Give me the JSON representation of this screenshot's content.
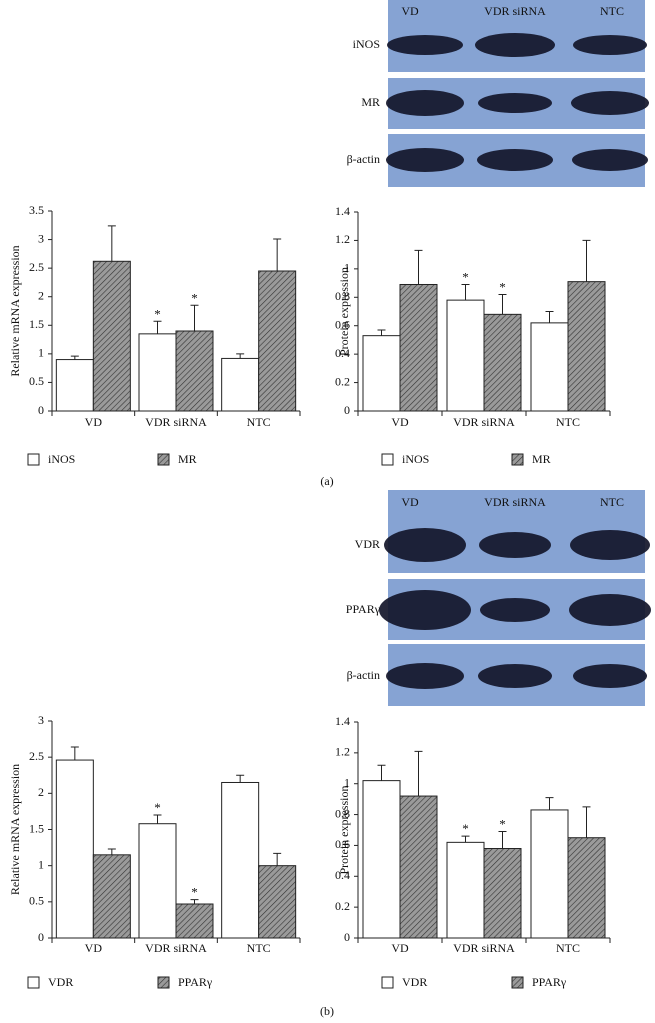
{
  "panels": [
    {
      "label": "(a)",
      "blot": {
        "columns": [
          "VD",
          "VDR siRNA",
          "NTC"
        ],
        "rows": [
          "iNOS",
          "MR",
          "β-actin"
        ]
      }
    },
    {
      "label": "(b)",
      "blot": {
        "columns": [
          "VD",
          "VDR siRNA",
          "NTC"
        ],
        "rows": [
          "VDR",
          "PPARγ",
          "β-actin"
        ]
      }
    }
  ],
  "chart_data": [
    {
      "type": "bar",
      "ylabel": "Relative mRNA expression",
      "categories": [
        "VD",
        "VDR siRNA",
        "NTC"
      ],
      "ylim": [
        0,
        3.5
      ],
      "yticks": [
        0,
        0.5,
        1,
        1.5,
        2,
        2.5,
        3,
        3.5
      ],
      "series": [
        {
          "name": "iNOS",
          "color": "#ffffff",
          "values": [
            0.9,
            1.35,
            0.92
          ],
          "errors": [
            0.06,
            0.22,
            0.08
          ],
          "marks": [
            null,
            "*",
            null
          ]
        },
        {
          "name": "MR",
          "color": "#9a9a9a",
          "fill": "hatched",
          "values": [
            2.62,
            1.4,
            2.45
          ],
          "errors": [
            0.62,
            0.45,
            0.56
          ],
          "marks": [
            null,
            "*",
            null
          ]
        }
      ]
    },
    {
      "type": "bar",
      "ylabel": "Protein expression",
      "categories": [
        "VD",
        "VDR siRNA",
        "NTC"
      ],
      "ylim": [
        0,
        1.4
      ],
      "yticks": [
        0,
        0.2,
        0.4,
        0.6,
        0.8,
        1,
        1.2,
        1.4
      ],
      "series": [
        {
          "name": "iNOS",
          "color": "#ffffff",
          "values": [
            0.53,
            0.78,
            0.62
          ],
          "errors": [
            0.04,
            0.11,
            0.08
          ],
          "marks": [
            null,
            "*",
            null
          ]
        },
        {
          "name": "MR",
          "color": "#9a9a9a",
          "fill": "hatched",
          "values": [
            0.89,
            0.68,
            0.91
          ],
          "errors": [
            0.24,
            0.14,
            0.29
          ],
          "marks": [
            null,
            "*",
            null
          ]
        }
      ]
    },
    {
      "type": "bar",
      "ylabel": "Relative mRNA expression",
      "categories": [
        "VD",
        "VDR siRNA",
        "NTC"
      ],
      "ylim": [
        0,
        3
      ],
      "yticks": [
        0,
        0.5,
        1,
        1.5,
        2,
        2.5,
        3
      ],
      "series": [
        {
          "name": "VDR",
          "color": "#ffffff",
          "values": [
            2.46,
            1.58,
            2.15
          ],
          "errors": [
            0.18,
            0.12,
            0.1
          ],
          "marks": [
            null,
            "*",
            null
          ]
        },
        {
          "name": "PPARγ",
          "color": "#9a9a9a",
          "fill": "hatched",
          "values": [
            1.15,
            0.47,
            1.0
          ],
          "errors": [
            0.08,
            0.06,
            0.17
          ],
          "marks": [
            null,
            "*",
            null
          ]
        }
      ]
    },
    {
      "type": "bar",
      "ylabel": "Protein expression",
      "categories": [
        "VD",
        "VDR siRNA",
        "NTC"
      ],
      "ylim": [
        0,
        1.4
      ],
      "yticks": [
        0,
        0.2,
        0.4,
        0.6,
        0.8,
        1,
        1.2,
        1.4
      ],
      "series": [
        {
          "name": "VDR",
          "color": "#ffffff",
          "values": [
            1.02,
            0.62,
            0.83
          ],
          "errors": [
            0.1,
            0.04,
            0.08
          ],
          "marks": [
            null,
            "*",
            null
          ]
        },
        {
          "name": "PPARγ",
          "color": "#9a9a9a",
          "fill": "hatched",
          "values": [
            0.92,
            0.58,
            0.65
          ],
          "errors": [
            0.29,
            0.11,
            0.2
          ],
          "marks": [
            null,
            "*",
            null
          ]
        }
      ]
    }
  ]
}
